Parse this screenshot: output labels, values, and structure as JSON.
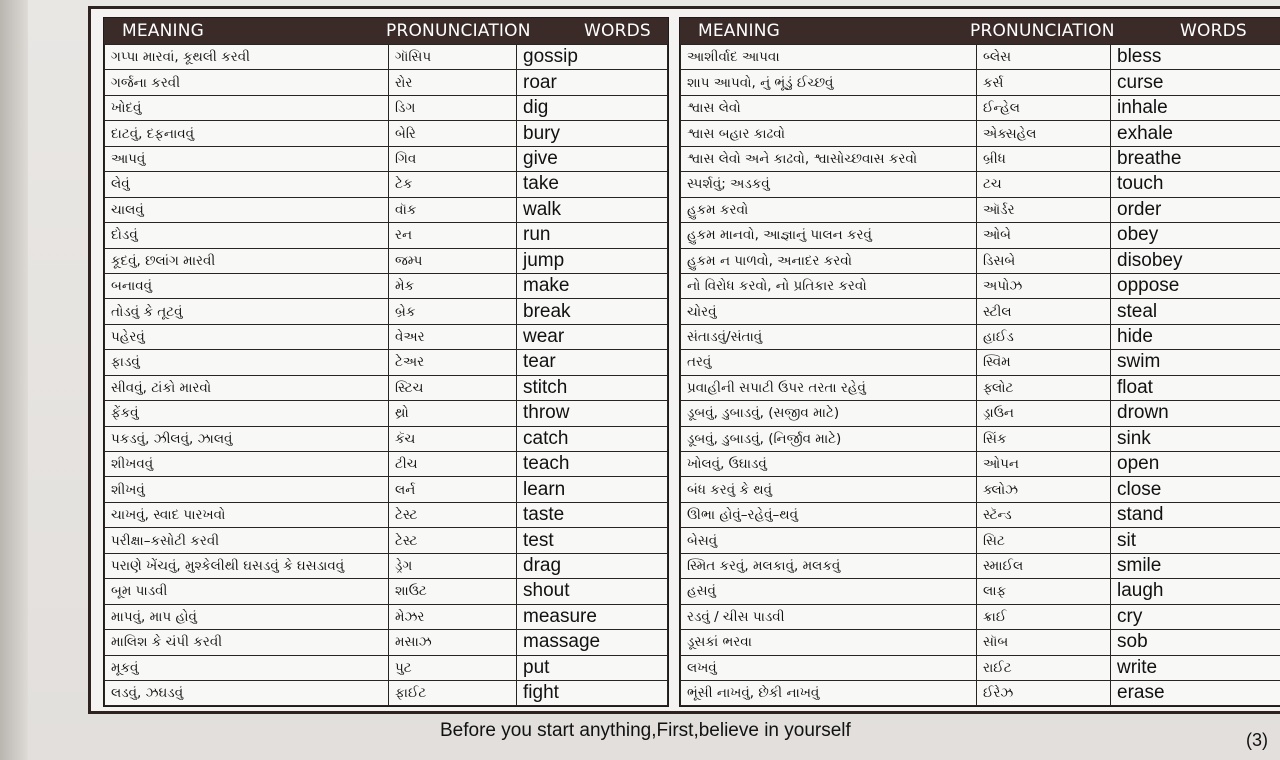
{
  "left": {
    "headers": {
      "meaning": "MEANING",
      "pronunciation": "PRONUNCIATION",
      "words": "WORDS"
    },
    "rows": [
      {
        "m": "ગપ્પા મારવાં, કૂથલી કરવી",
        "p": "ગૉસિપ",
        "w": "gossip"
      },
      {
        "m": "ગર્જના કરવી",
        "p": "રોર",
        "w": "roar"
      },
      {
        "m": "ખોદવું",
        "p": "ડિગ",
        "w": "dig"
      },
      {
        "m": "દાટવું, દફનાવવું",
        "p": "બેરિ",
        "w": "bury"
      },
      {
        "m": "આપવું",
        "p": "ગિવ",
        "w": "give"
      },
      {
        "m": "લેવું",
        "p": "ટેક",
        "w": "take"
      },
      {
        "m": "ચાલવું",
        "p": "વૉક",
        "w": "walk"
      },
      {
        "m": "દોડવું",
        "p": "રન",
        "w": "run"
      },
      {
        "m": "કૂદવું, છલાંગ મારવી",
        "p": "જમ્પ",
        "w": "jump"
      },
      {
        "m": "બનાવવું",
        "p": "મેક",
        "w": "make"
      },
      {
        "m": "તોડવું કે તૂટવું",
        "p": "બ્રેક",
        "w": "break"
      },
      {
        "m": "પહેરવું",
        "p": "વેઅર",
        "w": "wear"
      },
      {
        "m": "ફાડવું",
        "p": "ટેઅર",
        "w": "tear"
      },
      {
        "m": "સીવવું, ટાંકો મારવો",
        "p": "સ્ટિચ",
        "w": "stitch"
      },
      {
        "m": "ફેંકવું",
        "p": "થ્રો",
        "w": "throw"
      },
      {
        "m": "પકડવું, ઝીલવું, ઝાલવું",
        "p": "કૅચ",
        "w": "catch"
      },
      {
        "m": "શીખવવું",
        "p": "ટીચ",
        "w": "teach"
      },
      {
        "m": "શીખવું",
        "p": "લર્ન",
        "w": "learn"
      },
      {
        "m": "ચાખવું, સ્વાદ પારખવો",
        "p": "ટેસ્ટ",
        "w": "taste"
      },
      {
        "m": "પરીક્ષા–કસોટી કરવી",
        "p": "ટેસ્ટ",
        "w": "test"
      },
      {
        "m": "પરાણે ખેંચવું, મુશ્કેલીથી ઘસડવું કે ઘસડાવવું",
        "p": "ડ્રેગ",
        "w": "drag"
      },
      {
        "m": "બૂમ પાડવી",
        "p": "શાઉટ",
        "w": "shout"
      },
      {
        "m": "માપવું, માપ હોવું",
        "p": "મેઝર",
        "w": "measure"
      },
      {
        "m": "માલિશ કે ચંપી કરવી",
        "p": "મસાઝ",
        "w": "massage"
      },
      {
        "m": "મૂકવું",
        "p": "પુટ",
        "w": "put"
      },
      {
        "m": "લડવું, ઝઘડવું",
        "p": "ફાઈટ",
        "w": "fight"
      }
    ]
  },
  "right": {
    "headers": {
      "meaning": "MEANING",
      "pronunciation": "PRONUNCIATION",
      "words": "WORDS"
    },
    "rows": [
      {
        "m": "આશીર્વાદ આપવા",
        "p": "બ્લેસ",
        "w": "bless"
      },
      {
        "m": "શાપ આપવો, નું ભૂંડું ઈચ્છવું",
        "p": "કર્સ",
        "w": "curse"
      },
      {
        "m": "શ્વાસ લેવો",
        "p": "ઈન્હેલ",
        "w": "inhale"
      },
      {
        "m": "શ્વાસ બહાર કાઢવો",
        "p": "એક્સહેલ",
        "w": "exhale"
      },
      {
        "m": "શ્વાસ લેવો અને કાઢવો, શ્વાસોચ્છવાસ કરવો",
        "p": "બ્રીધ",
        "w": "breathe"
      },
      {
        "m": "સ્પર્શવું; અડકવું",
        "p": "ટચ",
        "w": "touch"
      },
      {
        "m": "હુકમ કરવો",
        "p": "ઑર્ડર",
        "w": "order"
      },
      {
        "m": "હુકમ માનવો, આજ્ઞાનું પાલન કરવું",
        "p": "ઓબે",
        "w": "obey"
      },
      {
        "m": "હુકમ ન પાળવો, અનાદર કરવો",
        "p": "ડિસબે",
        "w": "disobey"
      },
      {
        "m": "નો વિરોધ કરવો, નો પ્રતિકાર કરવો",
        "p": "અપોઝ",
        "w": "oppose"
      },
      {
        "m": "ચોરવું",
        "p": "સ્ટીલ",
        "w": "steal"
      },
      {
        "m": "સંતાડવું/સંતાવું",
        "p": "હાઈડ",
        "w": "hide"
      },
      {
        "m": "તરવું",
        "p": "સ્વિમ",
        "w": "swim"
      },
      {
        "m": "પ્રવાહીની સપાટી ઉપર તરતા રહેવું",
        "p": "ફ્લોટ",
        "w": "float"
      },
      {
        "m": "ડૂબવું, ડુબાડવું, (સજીવ માટે)",
        "p": "ડ્રાઉન",
        "w": "drown"
      },
      {
        "m": "ડૂબવું, ડુબાડવું, (નિર્જીવ માટે)",
        "p": "સિંક",
        "w": "sink"
      },
      {
        "m": "ખોલવું, ઉઘાડવું",
        "p": "ઓપન",
        "w": "open"
      },
      {
        "m": "બંધ કરવું કે થવું",
        "p": "ક્લોઝ",
        "w": "close"
      },
      {
        "m": "ઊભા હોવું–રહેવું–થવું",
        "p": "સ્ટૅન્ડ",
        "w": "stand"
      },
      {
        "m": "બેસવું",
        "p": "સિટ",
        "w": "sit"
      },
      {
        "m": "સ્મિત કરવું, મલકાવું, મલકવું",
        "p": "સ્માઈલ",
        "w": "smile"
      },
      {
        "m": "હસવું",
        "p": "લાફ",
        "w": "laugh"
      },
      {
        "m": "રડવું / ચીસ પાડવી",
        "p": "ક્રાઈ",
        "w": "cry"
      },
      {
        "m": "ડૂસકાં ભરવા",
        "p": "સૉબ",
        "w": "sob"
      },
      {
        "m": "લખવું",
        "p": "રાઈટ",
        "w": "write"
      },
      {
        "m": "ભૂંસી નાખવું, છેકી નાખવું",
        "p": "ઈરેઝ",
        "w": "erase"
      }
    ]
  },
  "footer": "Before you start anything,First,believe in yourself",
  "page_number": "(3)",
  "colors": {
    "header_bg": "#3a2b28",
    "border": "#2f2320",
    "paper": "#e9e7e4"
  }
}
